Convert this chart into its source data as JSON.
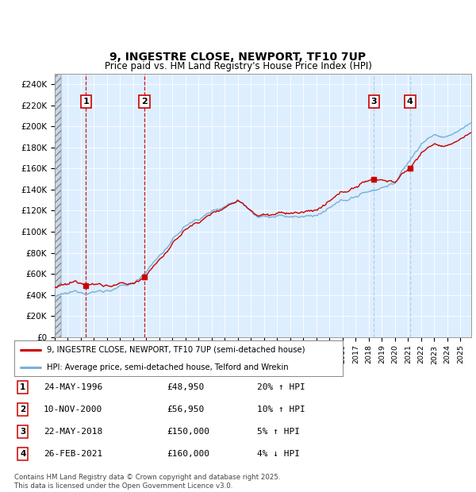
{
  "title": "9, INGESTRE CLOSE, NEWPORT, TF10 7UP",
  "subtitle": "Price paid vs. HM Land Registry's House Price Index (HPI)",
  "xlim_start": 1994.0,
  "xlim_end": 2025.83,
  "ylim_min": 0,
  "ylim_max": 250000,
  "yticks": [
    0,
    20000,
    40000,
    60000,
    80000,
    100000,
    120000,
    140000,
    160000,
    180000,
    200000,
    220000,
    240000
  ],
  "ytick_labels": [
    "£0",
    "£20K",
    "£40K",
    "£60K",
    "£80K",
    "£100K",
    "£120K",
    "£140K",
    "£160K",
    "£180K",
    "£200K",
    "£220K",
    "£240K"
  ],
  "sale_dates": [
    1996.39,
    2000.86,
    2018.39,
    2021.15
  ],
  "sale_prices": [
    48950,
    56950,
    150000,
    160000
  ],
  "sale_labels": [
    "1",
    "2",
    "3",
    "4"
  ],
  "vline_color_red": "#cc0000",
  "vline_color_blue": "#aaccee",
  "sale_marker_color": "#cc0000",
  "hpi_line_color": "#7ab0d4",
  "price_line_color": "#cc0000",
  "plot_bg_color": "#ddeeff",
  "shade_color": "#ddeeff",
  "legend_label_price": "9, INGESTRE CLOSE, NEWPORT, TF10 7UP (semi-detached house)",
  "legend_label_hpi": "HPI: Average price, semi-detached house, Telford and Wrekin",
  "table_entries": [
    {
      "num": "1",
      "date": "24-MAY-1996",
      "price": "£48,950",
      "pct": "20% ↑ HPI"
    },
    {
      "num": "2",
      "date": "10-NOV-2000",
      "price": "£56,950",
      "pct": "10% ↑ HPI"
    },
    {
      "num": "3",
      "date": "22-MAY-2018",
      "price": "£150,000",
      "pct": "5% ↑ HPI"
    },
    {
      "num": "4",
      "date": "26-FEB-2021",
      "price": "£160,000",
      "pct": "4% ↓ HPI"
    }
  ],
  "footer": "Contains HM Land Registry data © Crown copyright and database right 2025.\nThis data is licensed under the Open Government Licence v3.0.",
  "background_color": "#ffffff",
  "grid_color": "#ffffff"
}
